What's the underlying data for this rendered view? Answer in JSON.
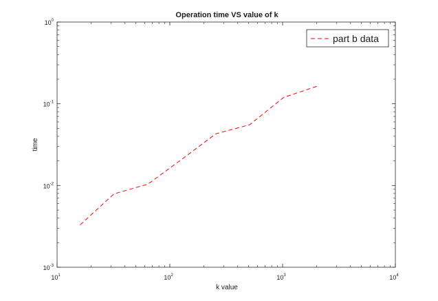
{
  "chart_data": {
    "type": "line",
    "title": "Operation time VS value of k",
    "xlabel": "k value",
    "ylabel": "time",
    "xscale": "log",
    "yscale": "log",
    "xlim": [
      10,
      10000
    ],
    "ylim": [
      0.001,
      1
    ],
    "grid": false,
    "legend_position": "top-right",
    "x_ticks": [
      {
        "value": 10,
        "base": "10",
        "exp": "1"
      },
      {
        "value": 100,
        "base": "10",
        "exp": "2"
      },
      {
        "value": 1000,
        "base": "10",
        "exp": "3"
      },
      {
        "value": 10000,
        "base": "10",
        "exp": "4"
      }
    ],
    "y_ticks": [
      {
        "value": 0.001,
        "base": "10",
        "exp": "-3"
      },
      {
        "value": 0.01,
        "base": "10",
        "exp": "-2"
      },
      {
        "value": 0.1,
        "base": "10",
        "exp": "-1"
      },
      {
        "value": 1,
        "base": "10",
        "exp": "0"
      }
    ],
    "series": [
      {
        "name": "part b data",
        "color": "#ff0000",
        "line_style": "dashed",
        "x": [
          16,
          32,
          64,
          128,
          256,
          512,
          1024,
          2048
        ],
        "y": [
          0.0033,
          0.0079,
          0.0104,
          0.021,
          0.043,
          0.0555,
          0.12,
          0.165
        ]
      }
    ]
  }
}
